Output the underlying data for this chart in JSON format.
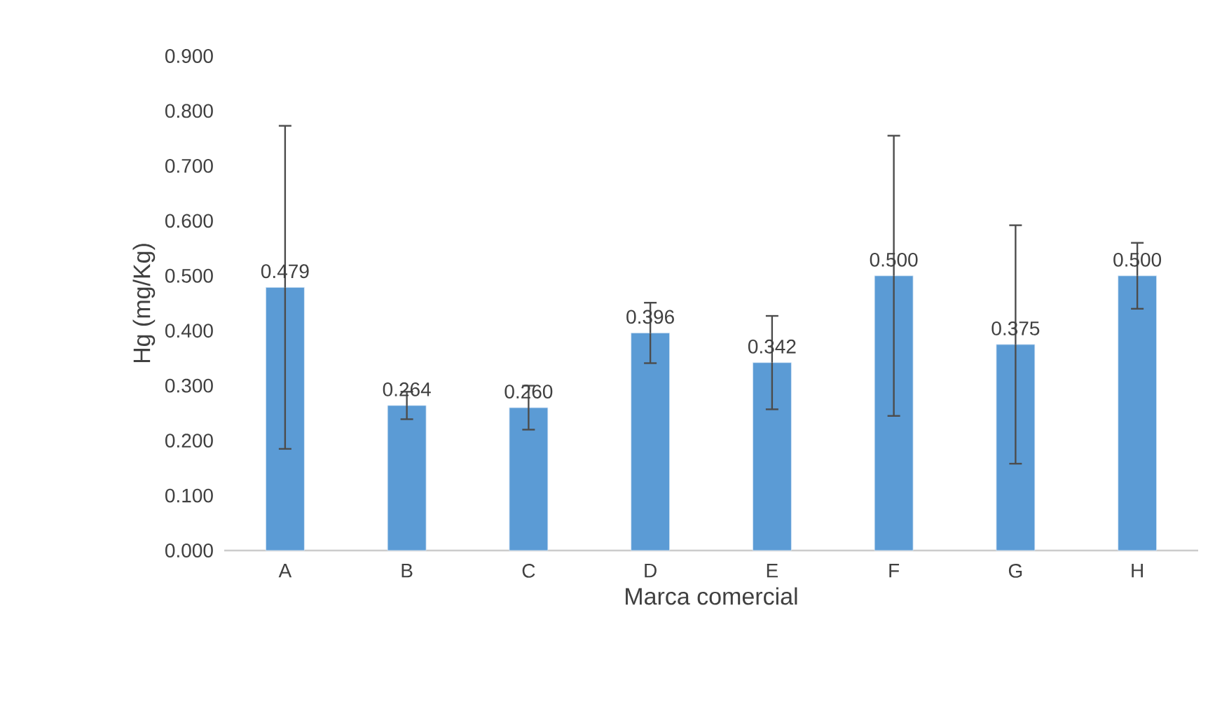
{
  "chart_data": {
    "type": "bar",
    "xlabel": "Marca comercial",
    "ylabel": "Hg (mg/Kg)",
    "categories": [
      "A",
      "B",
      "C",
      "D",
      "E",
      "F",
      "G",
      "H"
    ],
    "values": [
      0.479,
      0.264,
      0.26,
      0.396,
      0.342,
      0.5,
      0.375,
      0.5
    ],
    "value_labels": [
      "0.479",
      "0.264",
      "0.260",
      "0.396",
      "0.342",
      "0.500",
      "0.375",
      "0.500"
    ],
    "errors": [
      0.294,
      0.025,
      0.04,
      0.055,
      0.085,
      0.255,
      0.217,
      0.06
    ],
    "color": "#5b9bd5",
    "ylim": [
      0,
      0.9
    ],
    "yticks": [
      {
        "value": 0,
        "label": "0.000"
      },
      {
        "value": 0.1,
        "label": "0.100"
      },
      {
        "value": 0.2,
        "label": "0.200"
      },
      {
        "value": 0.3,
        "label": "0.300"
      },
      {
        "value": 0.4,
        "label": "0.400"
      },
      {
        "value": 0.5,
        "label": "0.500"
      },
      {
        "value": 0.6,
        "label": "0.600"
      },
      {
        "value": 0.7,
        "label": "0.700"
      },
      {
        "value": 0.8,
        "label": "0.800"
      },
      {
        "value": 0.9,
        "label": "0.900"
      }
    ]
  }
}
